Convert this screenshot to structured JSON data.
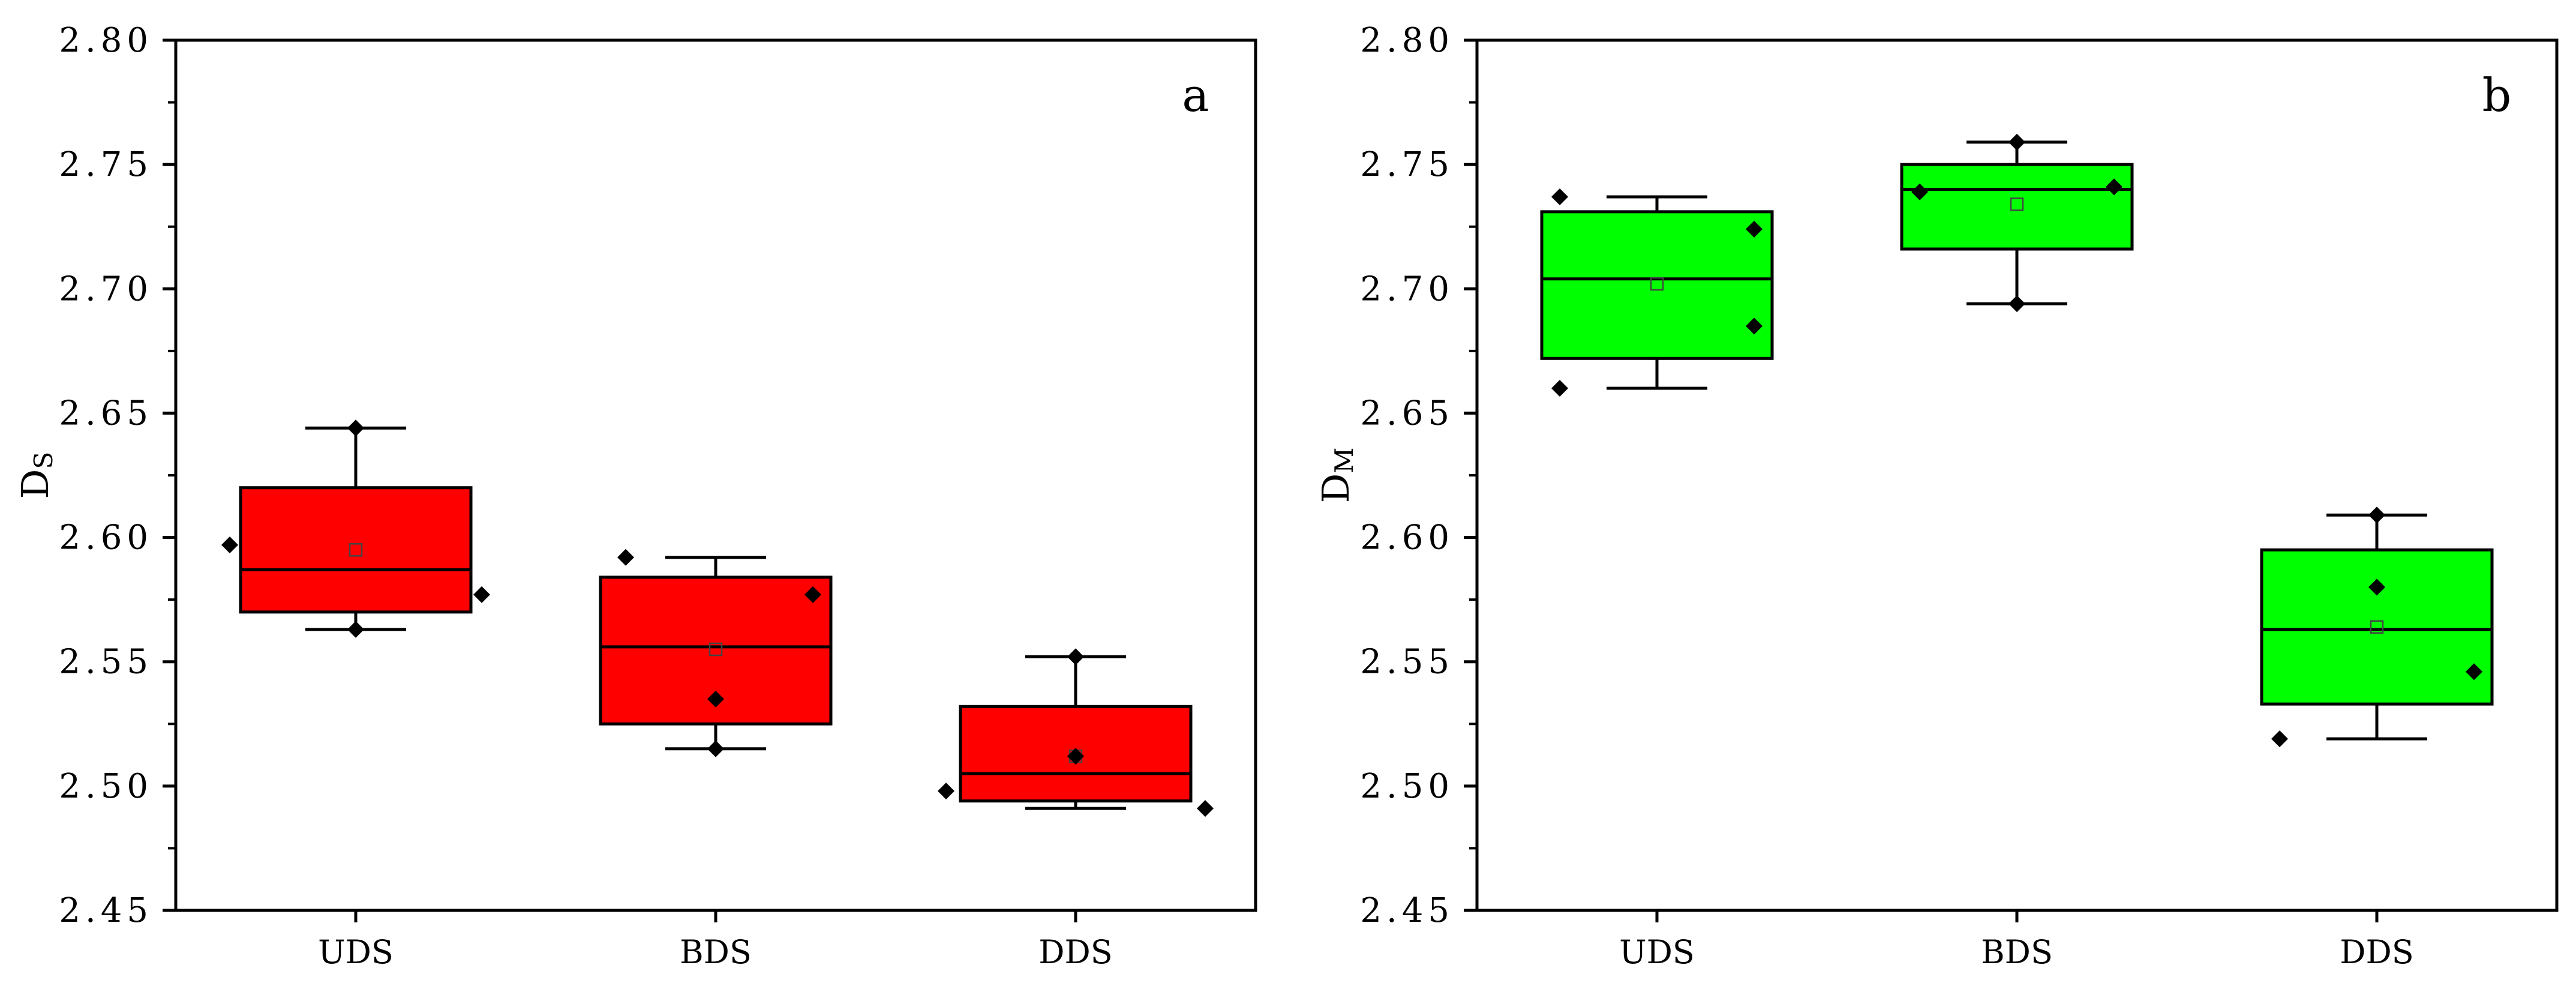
{
  "chart_data": [
    {
      "type": "box",
      "panel_label": "a",
      "ylabel": "D",
      "ylabel_sub": "S",
      "xlabel": "",
      "ylim": [
        2.45,
        2.8
      ],
      "yticks": [
        "2.45",
        "2.50",
        "2.55",
        "2.60",
        "2.65",
        "2.70",
        "2.75",
        "2.80"
      ],
      "categories": [
        "UDS",
        "BDS",
        "DDS"
      ],
      "box_color": "#ff0000",
      "boxes": [
        {
          "category": "UDS",
          "q1": 2.57,
          "median": 2.587,
          "q3": 2.62,
          "whisker_low": 2.563,
          "whisker_high": 2.644,
          "mean": 2.595,
          "points": [
            {
              "x_offset": -0.35,
              "y": 2.597
            },
            {
              "x_offset": 0.0,
              "y": 2.644
            },
            {
              "x_offset": 0.35,
              "y": 2.577
            },
            {
              "x_offset": 0.0,
              "y": 2.563
            }
          ]
        },
        {
          "category": "BDS",
          "q1": 2.525,
          "median": 2.556,
          "q3": 2.584,
          "whisker_low": 2.515,
          "whisker_high": 2.592,
          "mean": 2.555,
          "points": [
            {
              "x_offset": -0.25,
              "y": 2.592
            },
            {
              "x_offset": 0.27,
              "y": 2.577
            },
            {
              "x_offset": 0.0,
              "y": 2.535
            },
            {
              "x_offset": 0.0,
              "y": 2.515
            }
          ]
        },
        {
          "category": "DDS",
          "q1": 2.494,
          "median": 2.505,
          "q3": 2.532,
          "whisker_low": 2.491,
          "whisker_high": 2.552,
          "mean": 2.512,
          "points": [
            {
              "x_offset": 0.0,
              "y": 2.552
            },
            {
              "x_offset": 0.0,
              "y": 2.512
            },
            {
              "x_offset": -0.36,
              "y": 2.498
            },
            {
              "x_offset": 0.36,
              "y": 2.491
            }
          ]
        }
      ]
    },
    {
      "type": "box",
      "panel_label": "b",
      "ylabel": "D",
      "ylabel_sub": "M",
      "xlabel": "",
      "ylim": [
        2.45,
        2.8
      ],
      "yticks": [
        "2.45",
        "2.50",
        "2.55",
        "2.60",
        "2.65",
        "2.70",
        "2.75",
        "2.80"
      ],
      "categories": [
        "UDS",
        "BDS",
        "DDS"
      ],
      "box_color": "#00ff00",
      "boxes": [
        {
          "category": "UDS",
          "q1": 2.672,
          "median": 2.704,
          "q3": 2.731,
          "whisker_low": 2.66,
          "whisker_high": 2.737,
          "mean": 2.702,
          "points": [
            {
              "x_offset": -0.27,
              "y": 2.737
            },
            {
              "x_offset": 0.27,
              "y": 2.724
            },
            {
              "x_offset": 0.27,
              "y": 2.685
            },
            {
              "x_offset": -0.27,
              "y": 2.66
            }
          ]
        },
        {
          "category": "BDS",
          "q1": 2.716,
          "median": 2.74,
          "q3": 2.75,
          "whisker_low": 2.694,
          "whisker_high": 2.759,
          "mean": 2.734,
          "points": [
            {
              "x_offset": 0.0,
              "y": 2.759
            },
            {
              "x_offset": -0.27,
              "y": 2.739
            },
            {
              "x_offset": 0.27,
              "y": 2.741
            },
            {
              "x_offset": 0.0,
              "y": 2.694
            }
          ]
        },
        {
          "category": "DDS",
          "q1": 2.533,
          "median": 2.563,
          "q3": 2.595,
          "whisker_low": 2.519,
          "whisker_high": 2.609,
          "mean": 2.564,
          "points": [
            {
              "x_offset": 0.0,
              "y": 2.609
            },
            {
              "x_offset": 0.0,
              "y": 2.58
            },
            {
              "x_offset": 0.27,
              "y": 2.546
            },
            {
              "x_offset": -0.27,
              "y": 2.519
            }
          ]
        }
      ]
    }
  ]
}
